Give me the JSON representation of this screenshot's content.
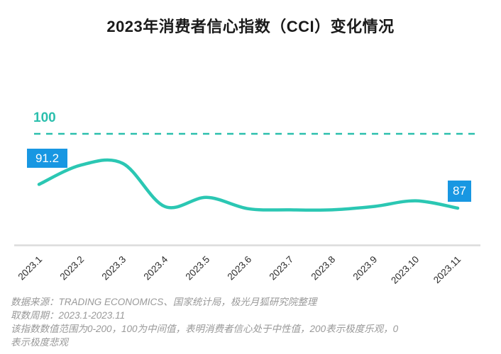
{
  "title": "2023年消费者信心指数（CCI）变化情况",
  "chart_data": {
    "type": "line",
    "title": "2023年消费者信心指数（CCI）变化情况",
    "categories": [
      "2023.1",
      "2023.2",
      "2023.3",
      "2023.4",
      "2023.5",
      "2023.6",
      "2023.7",
      "2023.8",
      "2023.9",
      "2023.10",
      "2023.11"
    ],
    "values": [
      91.2,
      94.6,
      94.9,
      87.3,
      88.9,
      86.9,
      86.7,
      86.7,
      87.3,
      88.3,
      87
    ],
    "first_point_label": "91.2",
    "last_point_label": "87",
    "reference_line": {
      "value": 100,
      "label": "100",
      "style": "dashed"
    },
    "xlabel": "",
    "ylabel": "",
    "ylim": [
      84,
      102
    ],
    "y_axis_visible": false,
    "grid": false,
    "legend": false
  },
  "colors": {
    "line": "#2bc7b3",
    "reference_line": "#2bbfad",
    "annotation_bg": "#1897e2",
    "annotation_text": "#ffffff",
    "axis_line": "#dcdcdc",
    "title_text": "#1a1a1a",
    "tick_text": "#2b2b2b",
    "footnote_text": "#999999"
  },
  "footer": {
    "lines": [
      "数据来源：TRADING ECONOMICS、国家统计局，极光月狐研究院整理",
      "取数周期：2023.1-2023.11",
      "该指数数值范围为0-200，100为中间值，表明消费者信心处于中性值，200表示极度乐观，0",
      "表示极度悲观"
    ]
  }
}
